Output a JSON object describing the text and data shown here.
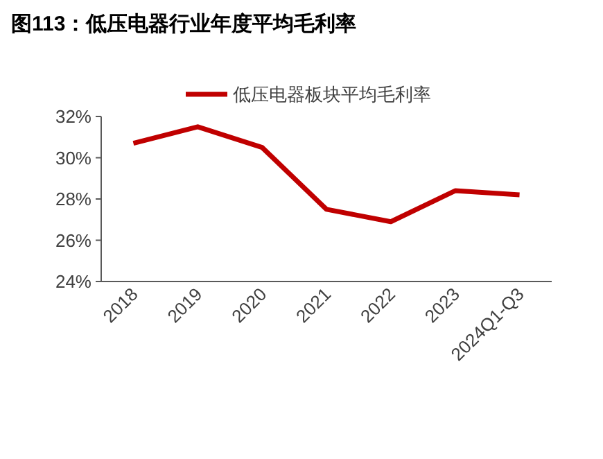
{
  "chart_data": {
    "type": "line",
    "title": "图113：低压电器行业年度平均毛利率",
    "categories": [
      "2018",
      "2019",
      "2020",
      "2021",
      "2022",
      "2023",
      "2024Q1-Q3"
    ],
    "series": [
      {
        "name": "低压电器板块平均毛利率",
        "color": "#c00000",
        "values": [
          30.7,
          31.5,
          30.5,
          27.5,
          26.9,
          28.4,
          28.2
        ]
      }
    ],
    "ylim": [
      24,
      32
    ],
    "yticks": [
      {
        "value": 24,
        "label": "24%"
      },
      {
        "value": 26,
        "label": "26%"
      },
      {
        "value": 28,
        "label": "28%"
      },
      {
        "value": 30,
        "label": "30%"
      },
      {
        "value": 32,
        "label": "32%"
      }
    ],
    "grid": false,
    "legend": "top",
    "marker": "none",
    "line_style": "solid"
  }
}
